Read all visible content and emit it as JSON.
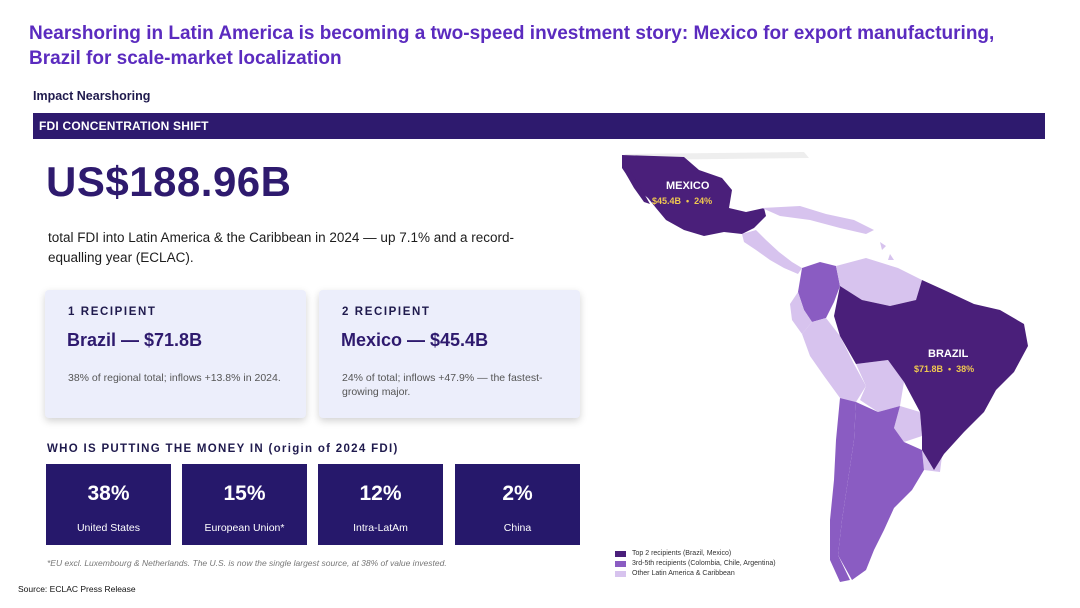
{
  "title": "Nearshoring in Latin America is becoming a two-speed investment story: Mexico for export manufacturing, Brazil for scale-market localization",
  "subtitle": "Impact Nearshoring",
  "band_label": "FDI CONCENTRATION SHIFT",
  "headline_value": "US$188.96B",
  "headline_desc": "total FDI into Latin America & the Caribbean in 2024 — up 7.1% and a record-equalling year (ECLAC).",
  "cards": [
    {
      "rank": "1 RECIPIENT",
      "headline": "Brazil — $71.8B",
      "note": "38% of regional total; inflows +13.8% in 2024."
    },
    {
      "rank": "2 RECIPIENT",
      "headline": "Mexico — $45.4B",
      "note": "24% of total; inflows +47.9% — the fastest-growing major."
    }
  ],
  "origin_title": "WHO IS PUTTING THE MONEY IN  (origin of 2024 FDI)",
  "origins": [
    {
      "value": "38%",
      "label": "United States"
    },
    {
      "value": "15%",
      "label": "European Union*"
    },
    {
      "value": "12%",
      "label": "Intra-LatAm"
    },
    {
      "value": "2%",
      "label": "China"
    }
  ],
  "footnote": "*EU excl. Luxembourg & Netherlands. The U.S. is now the single largest source, at 38% of value invested.",
  "source": "Source: ECLAC Press Release",
  "map": {
    "mexico_label": "MEXICO",
    "mexico_stats": "$45.4B  •  24%",
    "brazil_label": "BRAZIL",
    "brazil_stats": "$71.8B  •  38%",
    "legend": [
      {
        "label": "Top 2 recipients (Brazil, Mexico)",
        "color": "#4a1f7a"
      },
      {
        "label": "3rd-5th recipients (Colombia, Chile, Argentina)",
        "color": "#8a5cc2"
      },
      {
        "label": "Other Latin America & Caribbean",
        "color": "#d7c3ee"
      }
    ]
  },
  "colors": {
    "accent": "#5b2bbf",
    "navy": "#2e1a6e",
    "tile": "#26186b",
    "card_bg": "#eceefb",
    "stat_gold": "#f0c850"
  }
}
